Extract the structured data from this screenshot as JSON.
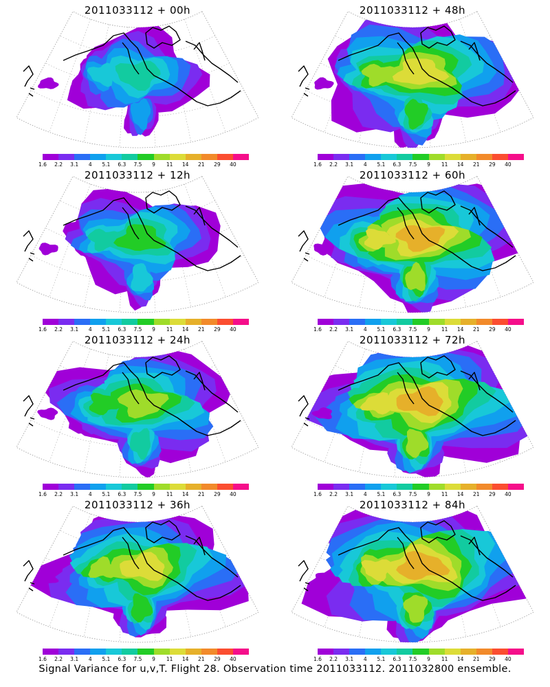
{
  "caption": "Signal Variance for u,v,T. Flight 28. Observation time 2011033112. 2011032800 ensemble.",
  "colorbar": {
    "labels": [
      "1.6",
      "2.2",
      "3.1",
      "4",
      "5.1",
      "6.3",
      "7.5",
      "9",
      "11",
      "14",
      "21",
      "29",
      "40"
    ],
    "colors": [
      "#a000d8",
      "#7a2cf0",
      "#2a6ef6",
      "#10a0ee",
      "#18c8d8",
      "#12cba0",
      "#22cc26",
      "#9fdc2a",
      "#dcdc38",
      "#e6b02a",
      "#f28a2a",
      "#fb4d30",
      "#f50e8a"
    ]
  },
  "panels": [
    {
      "title": "2011033112 + 00h",
      "intensity": 0.3
    },
    {
      "title": "2011033112 + 48h",
      "intensity": 0.78
    },
    {
      "title": "2011033112 + 12h",
      "intensity": 0.45
    },
    {
      "title": "2011033112 + 60h",
      "intensity": 0.82
    },
    {
      "title": "2011033112 + 24h",
      "intensity": 0.6
    },
    {
      "title": "2011033112 + 72h",
      "intensity": 0.88
    },
    {
      "title": "2011033112 + 36h",
      "intensity": 0.7
    },
    {
      "title": "2011033112 + 84h",
      "intensity": 0.92
    }
  ]
}
